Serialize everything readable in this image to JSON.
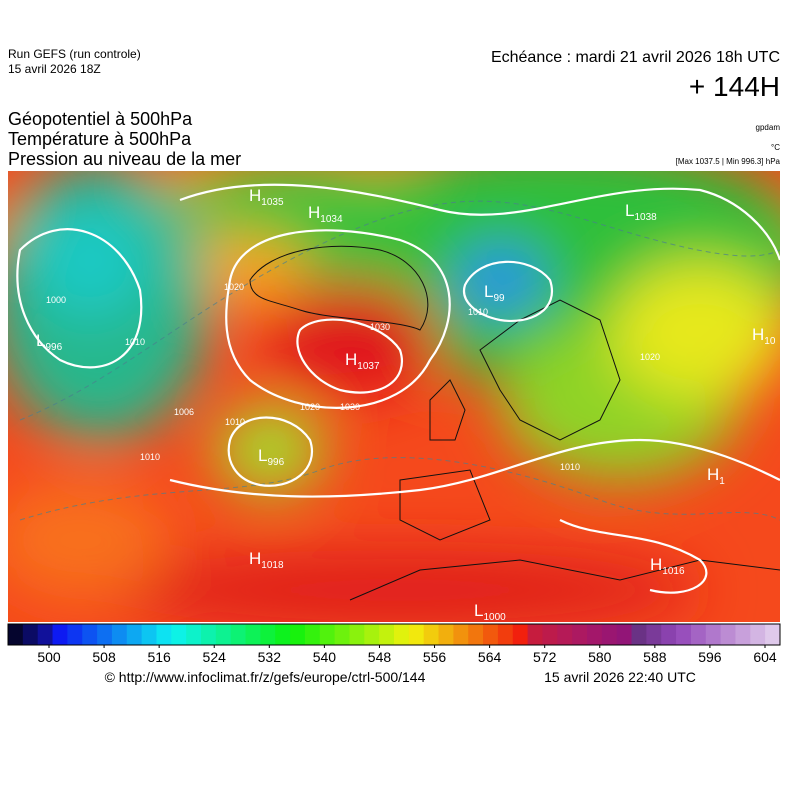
{
  "header": {
    "run": "Run GEFS (run controle)",
    "run_date": "15 avril 2026 18Z",
    "valid": "Echéance : mardi 21 avril 2026 18h UTC",
    "lead": "+ 144H",
    "titles": [
      "Géopotentiel à 500hPa",
      "Température à 500hPa",
      "Pression au niveau de la mer"
    ],
    "units": [
      "gpdam",
      "°C"
    ],
    "minmax": "[Max 1037.5 | Min 996.3] hPa"
  },
  "map": {
    "pressure_centers": [
      {
        "kind": "H",
        "value": "1035"
      },
      {
        "kind": "H",
        "value": "1034"
      },
      {
        "kind": "L",
        "value": "1038"
      },
      {
        "kind": "L",
        "value": "99"
      },
      {
        "kind": "L",
        "value": "996"
      },
      {
        "kind": "H",
        "value": "1037"
      },
      {
        "kind": "L",
        "value": "996"
      },
      {
        "kind": "H",
        "value": "1018"
      },
      {
        "kind": "L",
        "value": "1000"
      },
      {
        "kind": "H",
        "value": "1016"
      },
      {
        "kind": "H",
        "value": "10"
      },
      {
        "kind": "H",
        "value": "1"
      }
    ],
    "isobar_labels": [
      "1000",
      "1010",
      "1020",
      "1030",
      "1006",
      "1010",
      "1020",
      "1030",
      "1010",
      "1010",
      "1010",
      "1020"
    ]
  },
  "colorbar": {
    "ticks": [
      500,
      508,
      516,
      524,
      532,
      540,
      548,
      556,
      564,
      572,
      580,
      588,
      596,
      604
    ]
  },
  "footer": {
    "url": "© http://www.infoclimat.fr/z/gefs/europe/ctrl-500/144",
    "generated": "15 avril 2026 22:40 UTC"
  }
}
